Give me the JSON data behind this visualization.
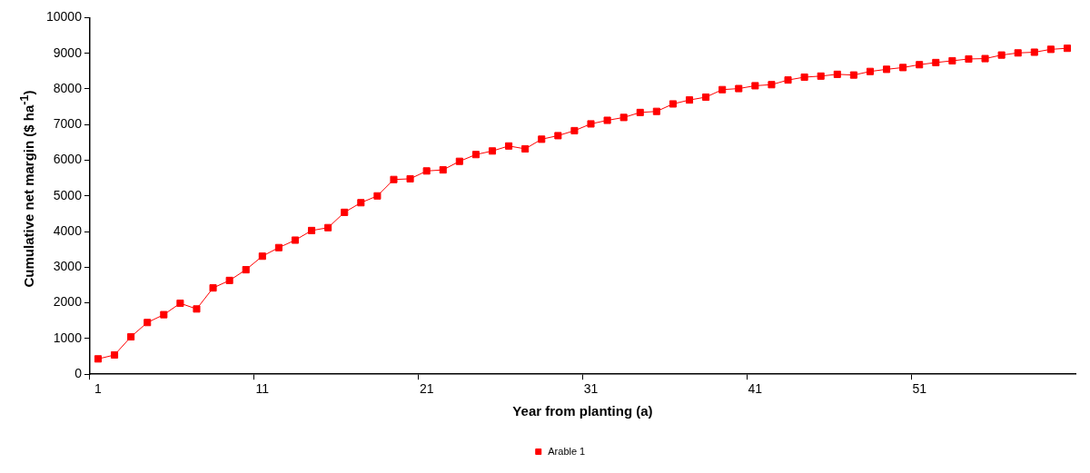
{
  "chart_data": {
    "type": "line",
    "xlabel": "Year from planting (a)",
    "ylabel": "Cumulative net margin ($ ha$^{-1}$)",
    "categories": [
      "1",
      null,
      null,
      null,
      null,
      null,
      null,
      null,
      null,
      null,
      "11",
      null,
      null,
      null,
      null,
      null,
      null,
      null,
      null,
      null,
      "21",
      null,
      null,
      null,
      null,
      null,
      null,
      null,
      null,
      null,
      "31",
      null,
      null,
      null,
      null,
      null,
      null,
      null,
      null,
      null,
      "41",
      null,
      null,
      null,
      null,
      null,
      null,
      null,
      null,
      null,
      "51",
      null,
      null,
      null,
      null,
      null,
      null,
      null,
      null,
      null
    ],
    "series": [
      {
        "name": "Arable 1",
        "color": "#ff0000",
        "values": [
          430,
          540,
          1050,
          1450,
          1670,
          1990,
          1830,
          2420,
          2630,
          2930,
          3310,
          3550,
          3760,
          4030,
          4110,
          4540,
          4810,
          5000,
          5460,
          5480,
          5700,
          5730,
          5970,
          6160,
          6260,
          6400,
          6320,
          6590,
          6690,
          6830,
          7020,
          7120,
          7200,
          7340,
          7370,
          7580,
          7690,
          7770,
          7980,
          8010,
          8090,
          8120,
          8250,
          8330,
          8360,
          8410,
          8390,
          8490,
          8550,
          8600,
          8680,
          8740,
          8790,
          8840,
          8850,
          8950,
          9010,
          9030,
          9110,
          9140
        ]
      }
    ],
    "ylim": [
      0,
      10000
    ],
    "yticks": [
      0,
      1000,
      2000,
      3000,
      4000,
      5000,
      6000,
      7000,
      8000,
      9000,
      10000
    ],
    "grid": false,
    "legend": "bottom",
    "marker": "square",
    "line_style": "solid"
  }
}
